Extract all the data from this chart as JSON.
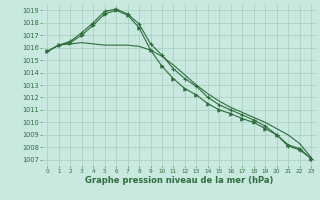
{
  "title": "Graphe pression niveau de la mer (hPa)",
  "bg_color": "#c8e8e0",
  "grid_color": "#a0c8b8",
  "line_color": "#2d6e3a",
  "xlim": [
    -0.5,
    23.5
  ],
  "ylim": [
    1006.5,
    1019.5
  ],
  "yticks": [
    1007,
    1008,
    1009,
    1010,
    1011,
    1012,
    1013,
    1014,
    1015,
    1016,
    1017,
    1018,
    1019
  ],
  "xticks": [
    0,
    1,
    2,
    3,
    4,
    5,
    6,
    7,
    8,
    9,
    10,
    11,
    12,
    13,
    14,
    15,
    16,
    17,
    18,
    19,
    20,
    21,
    22,
    23
  ],
  "line1_x": [
    0,
    1,
    2,
    3,
    4,
    5,
    6,
    7,
    8,
    9,
    10,
    11,
    12,
    13,
    14,
    15,
    16,
    17,
    18,
    19,
    20,
    21,
    22,
    23
  ],
  "line1_y": [
    1015.7,
    1016.2,
    1016.3,
    1016.4,
    1016.3,
    1016.2,
    1016.2,
    1016.2,
    1016.1,
    1015.8,
    1015.3,
    1014.6,
    1013.8,
    1013.0,
    1012.3,
    1011.7,
    1011.2,
    1010.8,
    1010.4,
    1010.0,
    1009.5,
    1009.0,
    1008.3,
    1007.2
  ],
  "line2_x": [
    0,
    1,
    2,
    3,
    4,
    5,
    6,
    7,
    8,
    9,
    10,
    11,
    12,
    13,
    14,
    15,
    16,
    17,
    18,
    19,
    20,
    21,
    22,
    23
  ],
  "line2_y": [
    1015.7,
    1016.2,
    1016.5,
    1017.2,
    1018.0,
    1018.9,
    1019.1,
    1018.7,
    1017.9,
    1016.3,
    1015.4,
    1014.3,
    1013.5,
    1012.9,
    1012.0,
    1011.4,
    1011.0,
    1010.6,
    1010.2,
    1009.7,
    1009.0,
    1008.1,
    1007.8,
    1007.1
  ],
  "line3_x": [
    0,
    1,
    2,
    3,
    4,
    5,
    6,
    7,
    8,
    9,
    10,
    11,
    12,
    13,
    14,
    15,
    16,
    17,
    18,
    19,
    20,
    21,
    22,
    23
  ],
  "line3_y": [
    1015.7,
    1016.2,
    1016.4,
    1017.0,
    1017.8,
    1018.7,
    1019.0,
    1018.6,
    1017.6,
    1015.8,
    1014.5,
    1013.5,
    1012.7,
    1012.2,
    1011.5,
    1011.0,
    1010.7,
    1010.3,
    1010.0,
    1009.5,
    1009.0,
    1008.2,
    1007.9,
    1007.1
  ],
  "ylabel_fontsize": 5.5,
  "xlabel_fontsize": 5.5,
  "title_fontsize": 6.0
}
